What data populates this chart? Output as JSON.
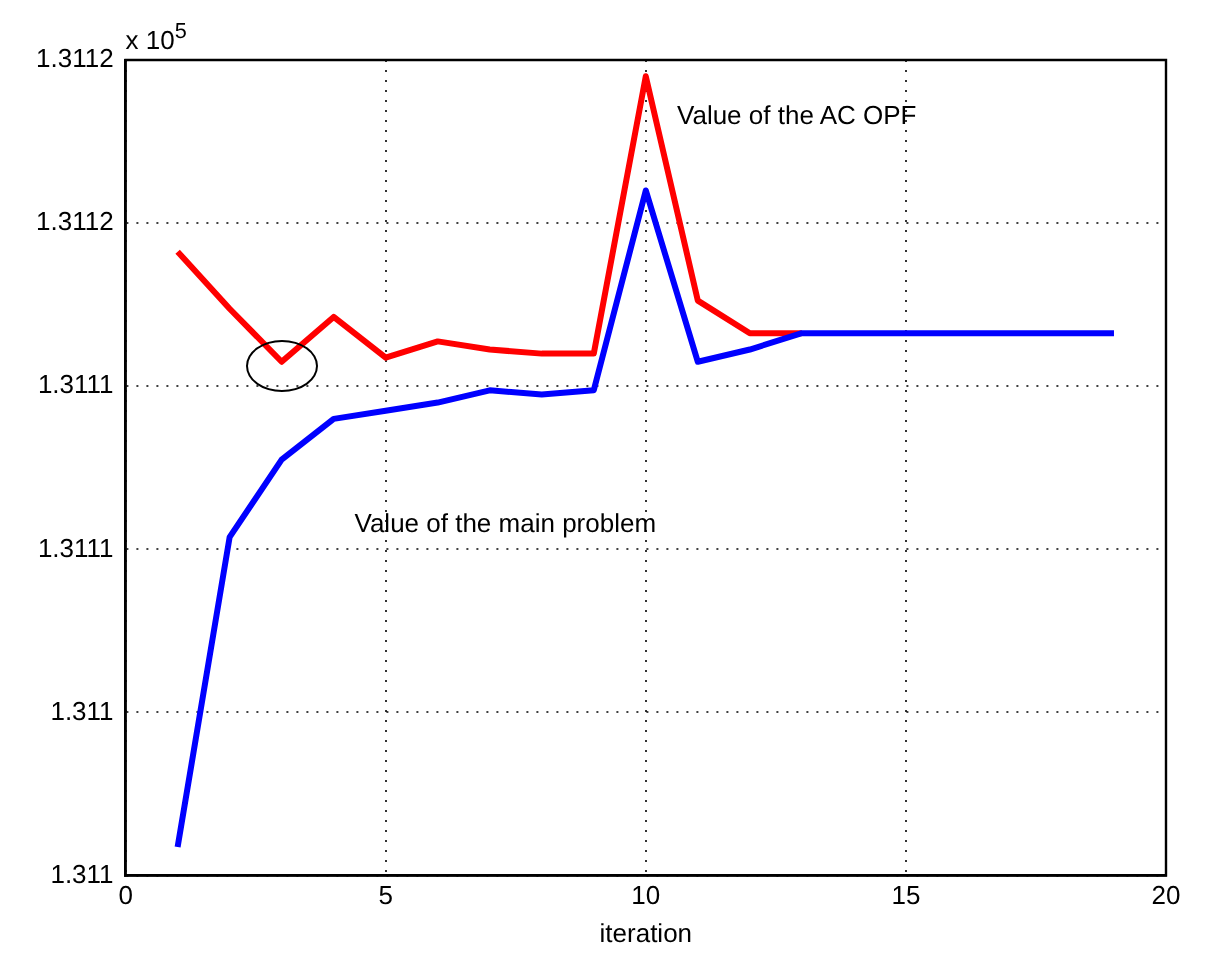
{
  "chart_data": {
    "type": "line",
    "xlabel": "iteration",
    "x": [
      1,
      2,
      3,
      4,
      5,
      6,
      7,
      8,
      9,
      10,
      11,
      12,
      13,
      14,
      15,
      16,
      17,
      18,
      19
    ],
    "series": [
      {
        "color": "#ff0000",
        "values": [
          1.311153,
          1.311139,
          1.311126,
          1.311137,
          1.311127,
          1.311131,
          1.311129,
          1.311128,
          1.311128,
          1.311196,
          1.311141,
          1.311133,
          1.311133,
          null,
          null,
          null,
          null,
          null,
          null
        ]
      },
      {
        "color": "#0000ff",
        "values": [
          1.311007,
          1.311083,
          1.311102,
          1.311112,
          1.311114,
          1.311116,
          1.311119,
          1.311118,
          1.311119,
          1.311168,
          1.311126,
          1.311129,
          1.311133,
          1.311133,
          1.311133,
          1.311133,
          1.311133,
          1.311133,
          1.311133
        ]
      }
    ],
    "xlim": [
      0,
      20
    ],
    "xticks": [
      0,
      5,
      10,
      15,
      20
    ],
    "ylim": [
      1.311,
      1.3112
    ],
    "yticks": [
      {
        "value": 1.311,
        "label": "1.311"
      },
      {
        "value": 1.31104,
        "label": "1.311"
      },
      {
        "value": 1.31108,
        "label": "1.3111"
      },
      {
        "value": 1.31112,
        "label": "1.3111"
      },
      {
        "value": 1.31116,
        "label": "1.3112"
      },
      {
        "value": 1.3112,
        "label": "1.3112"
      }
    ],
    "grid": true,
    "legend": false,
    "marker": "none",
    "line_style": "solid",
    "annotations": [
      "x 10$^{5}$",
      "Value of the AC OPF",
      "Value of the main problem"
    ]
  }
}
